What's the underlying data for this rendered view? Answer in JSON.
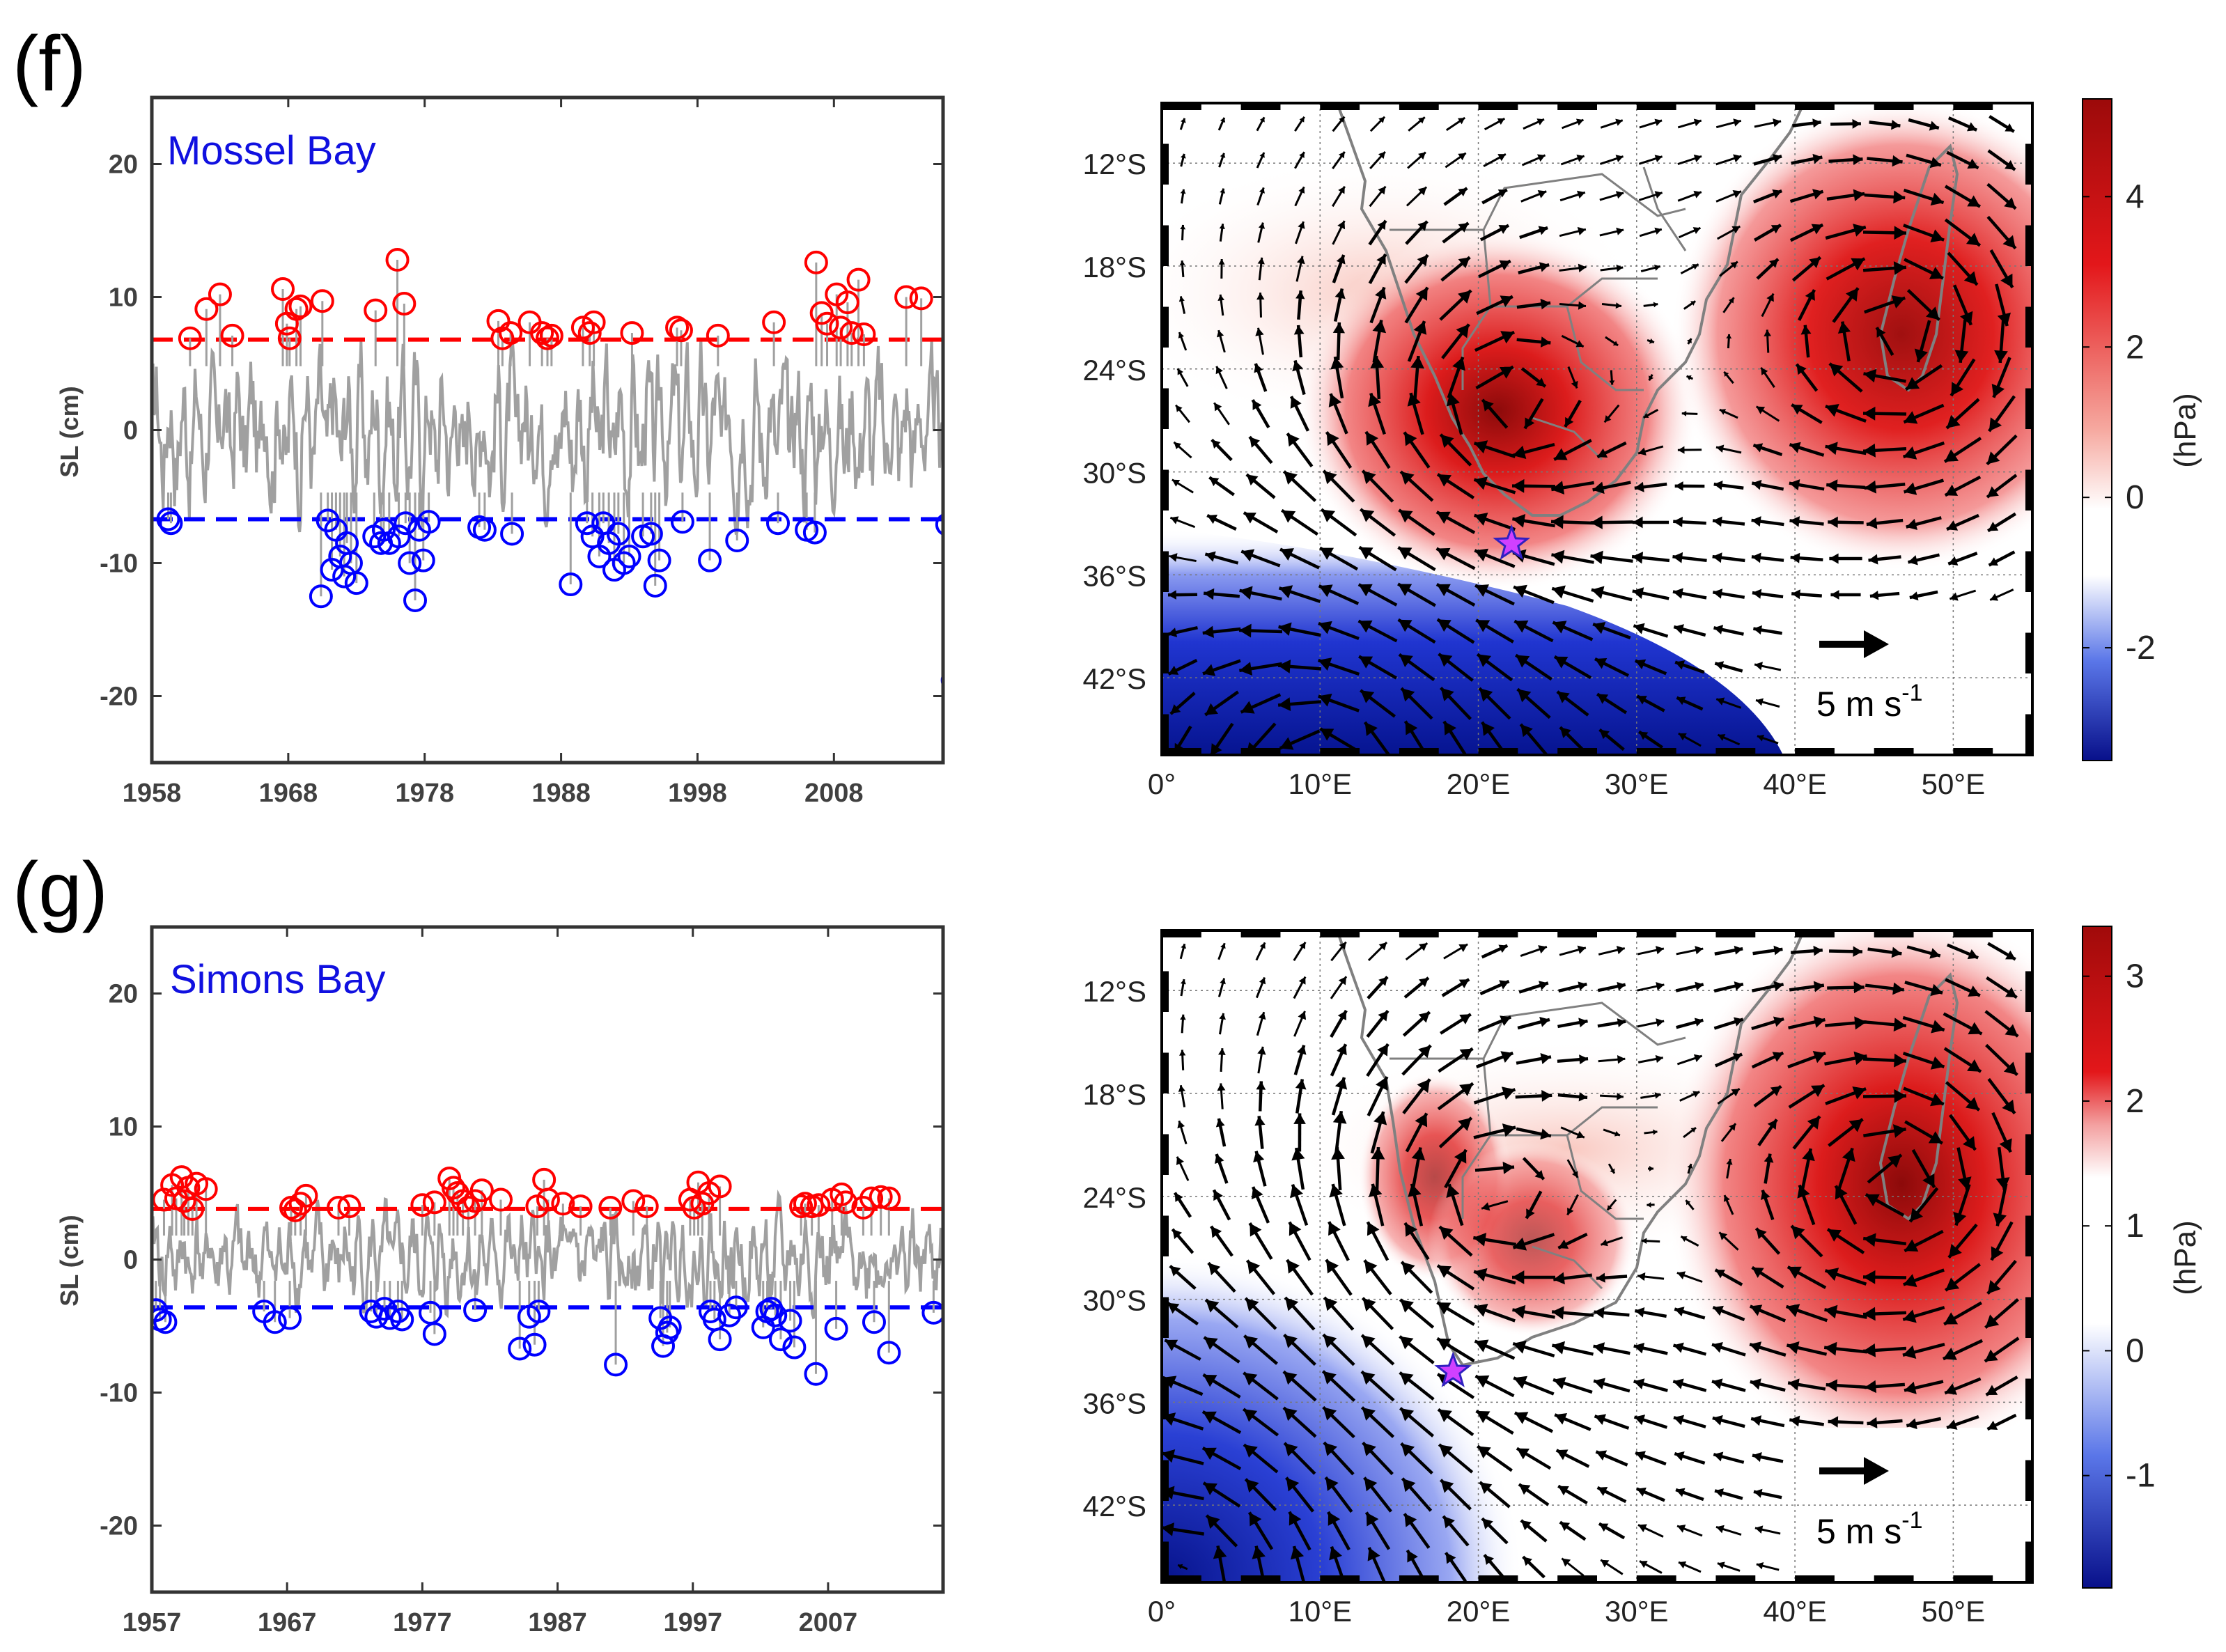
{
  "panels": [
    {
      "label": "(f)",
      "station": "Mossel Bay",
      "ylabel": "SL (cm)",
      "xticks": [
        "1958",
        "1968",
        "1978",
        "1988",
        "1998",
        "2008"
      ],
      "xtick_years": [
        1958,
        1968,
        1978,
        1988,
        1998,
        2008
      ],
      "map": {
        "lat_ticks": [
          "12°S",
          "18°S",
          "24°S",
          "30°S",
          "36°S",
          "42°S"
        ],
        "lon_ticks": [
          "0°",
          "10°E",
          "20°E",
          "30°E",
          "40°E",
          "50°E"
        ],
        "wind_scale_label": "5 m s",
        "wind_scale_exp": "-1",
        "colorbar_label": "(hPa)",
        "colorbar_ticks": [
          "4",
          "2",
          "0",
          "-2"
        ],
        "colorbar_tick_values": [
          4,
          2,
          0,
          -2
        ],
        "colorbar_range": [
          -3.5,
          5.3
        ],
        "station_star": {
          "lon": 22.1,
          "lat": -34.2
        }
      }
    },
    {
      "label": "(g)",
      "station": "Simons Bay",
      "ylabel": "SL (cm)",
      "xticks": [
        "1957",
        "1967",
        "1977",
        "1987",
        "1997",
        "2007"
      ],
      "xtick_years": [
        1957,
        1967,
        1977,
        1987,
        1997,
        2007
      ],
      "map": {
        "lat_ticks": [
          "12°S",
          "18°S",
          "24°S",
          "30°S",
          "36°S",
          "42°S"
        ],
        "lon_ticks": [
          "0°",
          "10°E",
          "20°E",
          "30°E",
          "40°E",
          "50°E"
        ],
        "wind_scale_label": "5 m s",
        "wind_scale_exp": "-1",
        "colorbar_label": "(hPa)",
        "colorbar_ticks": [
          "3",
          "2",
          "1",
          "0",
          "-1"
        ],
        "colorbar_tick_values": [
          3,
          2,
          1,
          0,
          -1
        ],
        "colorbar_range": [
          -1.9,
          3.4
        ],
        "station_star": {
          "lon": 18.4,
          "lat": -34.2
        }
      }
    }
  ],
  "chart_data": [
    {
      "type": "line",
      "title": "Mossel Bay",
      "xlabel": "",
      "ylabel": "SL (cm)",
      "xlim": [
        1958,
        2016
      ],
      "ylim": [
        -25,
        25
      ],
      "yticks": [
        20,
        10,
        0,
        -10,
        -20
      ],
      "grid": false,
      "thresholds": {
        "upper": 6.8,
        "lower": -6.7
      },
      "series": [
        {
          "name": "",
          "color": "#a0a0a0",
          "style": "monthly sea-level anomaly, approx -8 to 8 cm"
        },
        {
          "name": "",
          "color": "#ff0000",
          "marker": "circle",
          "x": [
            1960.8,
            1962.0,
            1963.0,
            1963.9,
            1967.6,
            1967.9,
            1968.1,
            1968.6,
            1968.9,
            1970.5,
            1974.4,
            1976.0,
            1976.5,
            1983.4,
            1983.7,
            1984.3,
            1985.7,
            1986.6,
            1987.0,
            1987.3,
            1989.6,
            1990.1,
            1990.4,
            1993.2,
            1996.8,
            1996.5,
            1999.5,
            2003.6,
            2006.7,
            2007.1,
            2007.5,
            2008.2,
            2008.5,
            2009.0,
            2009.3,
            2009.8,
            2010.2,
            2013.3,
            2014.4
          ],
          "y": [
            6.9,
            9.1,
            10.2,
            7.1,
            10.6,
            8.0,
            6.9,
            9.1,
            9.3,
            9.7,
            9.0,
            12.8,
            9.5,
            8.2,
            6.9,
            7.3,
            8.1,
            7.3,
            6.9,
            7.1,
            7.7,
            7.3,
            8.1,
            7.3,
            7.5,
            7.7,
            7.1,
            8.1,
            12.6,
            8.8,
            8.0,
            10.2,
            7.7,
            9.6,
            7.3,
            11.3,
            7.2,
            10.0,
            9.9
          ]
        },
        {
          "name": "",
          "color": "#0000ff",
          "marker": "circle",
          "x": [
            1959.2,
            1959.4,
            1970.4,
            1970.9,
            1971.2,
            1971.5,
            1971.8,
            1972.1,
            1972.3,
            1972.6,
            1973.0,
            1974.3,
            1974.8,
            1975.0,
            1975.4,
            1976.1,
            1976.6,
            1976.9,
            1977.3,
            1977.6,
            1977.9,
            1978.3,
            1982.0,
            1982.4,
            1984.4,
            1988.7,
            1989.9,
            1990.3,
            1990.8,
            1991.1,
            1991.5,
            1991.9,
            1992.2,
            1992.6,
            1993.0,
            1994.0,
            1994.6,
            1994.9,
            1995.2,
            1996.9,
            1998.9,
            2000.9,
            2003.9,
            2006.0,
            2006.6,
            2016.3,
            2016.7
          ],
          "y": [
            -6.7,
            -7.0,
            -12.5,
            -6.8,
            -10.5,
            -7.5,
            -9.5,
            -11.0,
            -8.5,
            -10.0,
            -11.5,
            -8.0,
            -8.5,
            -7.5,
            -8.5,
            -8.0,
            -7.0,
            -10.0,
            -12.8,
            -7.5,
            -9.8,
            -6.9,
            -7.3,
            -7.5,
            -7.8,
            -11.6,
            -7.0,
            -8.0,
            -9.5,
            -7.0,
            -8.5,
            -10.5,
            -7.8,
            -10.0,
            -9.5,
            -8.0,
            -7.8,
            -11.7,
            -9.8,
            -6.9,
            -9.8,
            -8.3,
            -7.0,
            -7.5,
            -7.7,
            -7.1,
            -18.8
          ]
        }
      ]
    },
    {
      "type": "line",
      "title": "Simons Bay",
      "xlabel": "",
      "ylabel": "SL (cm)",
      "xlim": [
        1957,
        2015.5
      ],
      "ylim": [
        -25,
        25
      ],
      "yticks": [
        20,
        10,
        0,
        -10,
        -20
      ],
      "grid": false,
      "thresholds": {
        "upper": 3.8,
        "lower": -3.6
      },
      "series": [
        {
          "name": "",
          "color": "#a0a0a0",
          "style": "monthly sea-level anomaly, approx -5 to 5 cm"
        },
        {
          "name": "",
          "color": "#ff0000",
          "marker": "circle",
          "x": [
            1957.9,
            1958.5,
            1958.8,
            1959.2,
            1959.4,
            1959.7,
            1960.0,
            1960.3,
            1961.0,
            1967.3,
            1967.6,
            1968.0,
            1968.4,
            1970.8,
            1971.6,
            1977.0,
            1977.9,
            1979.0,
            1979.3,
            1979.6,
            1980.0,
            1980.4,
            1980.9,
            1981.4,
            1982.8,
            1985.5,
            1986.0,
            1986.3,
            1987.4,
            1988.7,
            1990.9,
            1992.6,
            1993.6,
            1996.8,
            1997.1,
            1997.4,
            1997.7,
            1998.2,
            1999.0,
            2005.0,
            2005.3,
            2005.8,
            2006.3,
            2007.3,
            2008.0,
            2008.3,
            2009.6,
            2010.2,
            2010.9,
            2011.5
          ],
          "y": [
            4.5,
            5.6,
            4.6,
            6.2,
            4.4,
            5.4,
            3.8,
            5.7,
            5.3,
            3.9,
            3.7,
            4.2,
            4.8,
            3.9,
            4.0,
            4.1,
            4.3,
            6.1,
            5.4,
            5.0,
            4.4,
            3.9,
            4.4,
            5.2,
            4.5,
            4.0,
            6.0,
            4.5,
            4.2,
            4.0,
            3.9,
            4.4,
            4.0,
            4.5,
            3.9,
            5.8,
            4.2,
            5.0,
            5.5,
            4.0,
            4.2,
            4.0,
            4.1,
            4.5,
            4.9,
            4.3,
            3.9,
            4.6,
            4.7,
            4.6
          ]
        },
        {
          "name": "",
          "color": "#0000ff",
          "marker": "circle",
          "x": [
            1957.3,
            1957.6,
            1958.0,
            1965.3,
            1966.1,
            1967.2,
            1973.2,
            1973.6,
            1974.2,
            1974.6,
            1975.2,
            1975.5,
            1977.6,
            1977.9,
            1980.9,
            1984.2,
            1984.9,
            1985.3,
            1985.6,
            1991.3,
            1994.6,
            1994.8,
            1995.1,
            1995.3,
            1998.3,
            1998.6,
            1999.0,
            1999.7,
            2000.2,
            2002.2,
            2002.5,
            2002.8,
            2003.1,
            2003.5,
            2004.2,
            2004.5,
            2006.1,
            2007.6,
            2010.4,
            2011.5,
            2014.8
          ],
          "y": [
            -3.8,
            -4.5,
            -4.7,
            -3.9,
            -4.7,
            -4.4,
            -3.9,
            -4.3,
            -3.7,
            -4.4,
            -3.9,
            -4.5,
            -4.0,
            -5.6,
            -3.8,
            -6.7,
            -4.3,
            -6.4,
            -3.9,
            -7.9,
            -4.4,
            -6.5,
            -5.5,
            -5.1,
            -3.9,
            -4.5,
            -6.0,
            -4.2,
            -3.6,
            -5.1,
            -3.9,
            -3.7,
            -4.2,
            -6.0,
            -4.6,
            -6.6,
            -8.6,
            -5.2,
            -4.7,
            -7.0,
            -4.0
          ]
        }
      ]
    }
  ]
}
